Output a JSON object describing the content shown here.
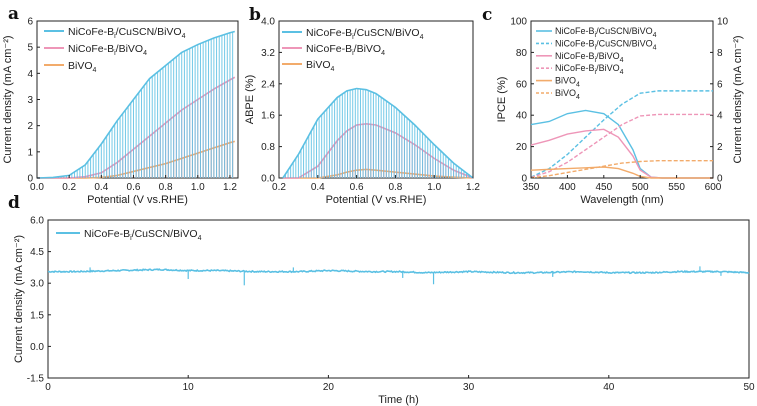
{
  "colors": {
    "cusc": "#5bc0e3",
    "nicofe": "#ee96b8",
    "bivo4": "#f2ab6b",
    "axis": "#222222"
  },
  "chart_data": [
    {
      "panel": "a",
      "type": "line",
      "style": "chopped-light transient",
      "xlabel": "Potential (V vs.RHE)",
      "ylabel": "Current density (mA cm⁻²)",
      "xlim": [
        0.0,
        1.25
      ],
      "ylim": [
        0,
        6
      ],
      "xticks": [
        "0.0",
        "0.2",
        "0.4",
        "0.6",
        "0.8",
        "1.0",
        "1.2"
      ],
      "yticks": [
        "0",
        "1",
        "2",
        "3",
        "4",
        "5",
        "6"
      ],
      "x": [
        0.0,
        0.1,
        0.2,
        0.3,
        0.4,
        0.5,
        0.6,
        0.7,
        0.8,
        0.9,
        1.0,
        1.1,
        1.2,
        1.23
      ],
      "series": [
        {
          "name": "NiCoFe-B_i/CuSCN/BiVO₄",
          "color_key": "cusc",
          "values": [
            0.0,
            0.02,
            0.1,
            0.5,
            1.3,
            2.2,
            3.0,
            3.8,
            4.3,
            4.8,
            5.1,
            5.35,
            5.55,
            5.6
          ]
        },
        {
          "name": "NiCoFe-B_i/BiVO₄",
          "color_key": "nicofe",
          "values": [
            0.0,
            0.0,
            0.0,
            0.05,
            0.2,
            0.6,
            1.1,
            1.6,
            2.1,
            2.6,
            3.0,
            3.4,
            3.75,
            3.85
          ]
        },
        {
          "name": "BiVO₄",
          "color_key": "bivo4",
          "values": [
            0.0,
            0.0,
            0.0,
            0.0,
            0.02,
            0.1,
            0.25,
            0.4,
            0.55,
            0.75,
            0.95,
            1.15,
            1.35,
            1.4
          ]
        }
      ],
      "legend": [
        {
          "main": "NiCoFe-B",
          "sub": "i",
          "rest": "/CuSCN/BiVO",
          "sub2": "4"
        },
        {
          "main": "NiCoFe-B",
          "sub": "i",
          "rest": "/BiVO",
          "sub2": "4"
        },
        {
          "main": "BiVO",
          "sub": "",
          "rest": "",
          "sub2": "4"
        }
      ]
    },
    {
      "panel": "b",
      "type": "line",
      "style": "chopped-light transient",
      "xlabel": "Potential (V vs.RHE)",
      "ylabel": "ABPE (%)",
      "xlim": [
        0.2,
        1.2
      ],
      "ylim": [
        0.0,
        4.0
      ],
      "xticks": [
        "0.2",
        "0.4",
        "0.6",
        "0.8",
        "1.0",
        "1.2"
      ],
      "yticks": [
        "0.0",
        "0.8",
        "1.6",
        "2.4",
        "3.2",
        "4.0"
      ],
      "x": [
        0.22,
        0.3,
        0.4,
        0.5,
        0.55,
        0.6,
        0.65,
        0.7,
        0.8,
        0.9,
        1.0,
        1.1,
        1.2
      ],
      "series": [
        {
          "name": "NiCoFe-B_i/CuSCN/BiVO₄",
          "color_key": "cusc",
          "values": [
            0.0,
            0.6,
            1.5,
            2.05,
            2.22,
            2.28,
            2.25,
            2.15,
            1.8,
            1.35,
            0.85,
            0.38,
            0.0
          ]
        },
        {
          "name": "NiCoFe-B_i/BiVO₄",
          "color_key": "nicofe",
          "values": [
            0.0,
            0.0,
            0.3,
            0.95,
            1.2,
            1.35,
            1.38,
            1.35,
            1.15,
            0.85,
            0.5,
            0.2,
            0.0
          ]
        },
        {
          "name": "BiVO₄",
          "color_key": "bivo4",
          "values": [
            0.0,
            0.0,
            0.0,
            0.08,
            0.15,
            0.2,
            0.22,
            0.2,
            0.15,
            0.1,
            0.05,
            0.02,
            0.0
          ]
        }
      ],
      "legend": [
        {
          "main": "NiCoFe-B",
          "sub": "i",
          "rest": "/CuSCN/BiVO",
          "sub2": "4"
        },
        {
          "main": "NiCoFe-B",
          "sub": "i",
          "rest": "/BiVO",
          "sub2": "4"
        },
        {
          "main": "BiVO",
          "sub": "",
          "rest": "",
          "sub2": "4"
        }
      ]
    },
    {
      "panel": "c",
      "type": "line",
      "xlabel": "Wavelength (nm)",
      "ylabel": "IPCE (%)",
      "ylabel_right": "Current density (mA cm⁻²)",
      "xlim": [
        350,
        600
      ],
      "ylim": [
        0,
        100
      ],
      "ylim_right": [
        0,
        10
      ],
      "xticks": [
        "350",
        "400",
        "450",
        "500",
        "550",
        "600"
      ],
      "yticks": [
        "0",
        "20",
        "40",
        "60",
        "80",
        "100"
      ],
      "yticks_right": [
        "0",
        "2",
        "4",
        "6",
        "8",
        "10"
      ],
      "series": [
        {
          "name": "NiCoFe-B_i/CuSCN/BiVO₄",
          "color_key": "cusc",
          "axis": "left",
          "dash": false,
          "x": [
            350,
            375,
            400,
            425,
            450,
            470,
            490,
            500,
            515,
            530,
            600
          ],
          "values": [
            34,
            36,
            41,
            43,
            41,
            34,
            18,
            6,
            0.5,
            0,
            0
          ]
        },
        {
          "name": "NiCoFe-B_i/CuSCN/BiVO₄",
          "color_key": "cusc",
          "axis": "right",
          "dash": true,
          "x": [
            350,
            375,
            400,
            425,
            450,
            475,
            500,
            525,
            550,
            600
          ],
          "values": [
            0.05,
            0.6,
            1.5,
            2.6,
            3.7,
            4.7,
            5.4,
            5.55,
            5.55,
            5.55
          ]
        },
        {
          "name": "NiCoFe-B_i/BiVO₄",
          "color_key": "nicofe",
          "axis": "left",
          "dash": false,
          "x": [
            350,
            375,
            400,
            425,
            450,
            470,
            490,
            500,
            515,
            530,
            600
          ],
          "values": [
            21,
            24,
            28,
            30,
            31,
            26,
            14,
            5,
            0.5,
            0,
            0
          ]
        },
        {
          "name": "NiCoFe-B_i/BiVO₄",
          "color_key": "nicofe",
          "axis": "right",
          "dash": true,
          "x": [
            350,
            375,
            400,
            425,
            450,
            475,
            500,
            525,
            550,
            600
          ],
          "values": [
            0.03,
            0.4,
            1.0,
            1.8,
            2.6,
            3.4,
            3.95,
            4.05,
            4.05,
            4.05
          ]
        },
        {
          "name": "BiVO₄",
          "color_key": "bivo4",
          "axis": "left",
          "dash": false,
          "x": [
            350,
            375,
            400,
            425,
            450,
            470,
            490,
            500,
            515,
            530,
            600
          ],
          "values": [
            5,
            5.5,
            6,
            6.5,
            7,
            6,
            3,
            1,
            0,
            0,
            0
          ]
        },
        {
          "name": "BiVO₄",
          "color_key": "bivo4",
          "axis": "right",
          "dash": true,
          "x": [
            350,
            375,
            400,
            425,
            450,
            475,
            500,
            525,
            550,
            600
          ],
          "values": [
            0.01,
            0.15,
            0.35,
            0.55,
            0.75,
            0.95,
            1.05,
            1.1,
            1.1,
            1.1
          ]
        }
      ],
      "legend": [
        {
          "main": "NiCoFe-B",
          "sub": "i",
          "rest": "/CuSCN/BiVO",
          "sub2": "4",
          "dash": false,
          "color_key": "cusc"
        },
        {
          "main": "NiCoFe-B",
          "sub": "i",
          "rest": "/CuSCN/BiVO",
          "sub2": "4",
          "dash": true,
          "color_key": "cusc"
        },
        {
          "main": "NiCoFe-B",
          "sub": "i",
          "rest": "/BiVO",
          "sub2": "4",
          "dash": false,
          "color_key": "nicofe"
        },
        {
          "main": "NiCoFe-B",
          "sub": "i",
          "rest": "/BiVO",
          "sub2": "4",
          "dash": true,
          "color_key": "nicofe"
        },
        {
          "main": "BiVO",
          "sub": "",
          "rest": "",
          "sub2": "4",
          "dash": false,
          "color_key": "bivo4"
        },
        {
          "main": "BiVO",
          "sub": "",
          "rest": "",
          "sub2": "4",
          "dash": true,
          "color_key": "bivo4"
        }
      ]
    },
    {
      "panel": "d",
      "type": "line",
      "xlabel": "Time (h)",
      "ylabel": "Current density (mA cm⁻²)",
      "xlim": [
        0,
        50
      ],
      "ylim": [
        -1.5,
        6.0
      ],
      "xticks": [
        "0",
        "10",
        "20",
        "30",
        "40",
        "50"
      ],
      "yticks": [
        "-1.5",
        "0.0",
        "1.5",
        "3.0",
        "4.5",
        "6.0"
      ],
      "series": [
        {
          "name": "NiCoFe-B_i/CuSCN/BiVO₄",
          "color_key": "cusc",
          "x": [
            0,
            2,
            5,
            8,
            10,
            12,
            15,
            18,
            20,
            23,
            25,
            27,
            30,
            33,
            35,
            38,
            40,
            43,
            45,
            48,
            50
          ],
          "values": [
            3.55,
            3.55,
            3.6,
            3.65,
            3.6,
            3.6,
            3.55,
            3.55,
            3.6,
            3.55,
            3.55,
            3.5,
            3.55,
            3.5,
            3.5,
            3.55,
            3.5,
            3.5,
            3.55,
            3.55,
            3.5
          ]
        }
      ],
      "spikes": [
        {
          "x": 10.0,
          "y": 3.2
        },
        {
          "x": 14.0,
          "y": 2.9
        },
        {
          "x": 25.3,
          "y": 3.25
        },
        {
          "x": 27.5,
          "y": 2.95
        },
        {
          "x": 36.0,
          "y": 3.3
        },
        {
          "x": 48.0,
          "y": 3.35
        },
        {
          "x": 3.0,
          "y": 3.75
        },
        {
          "x": 17.5,
          "y": 3.75
        },
        {
          "x": 46.5,
          "y": 3.8
        }
      ],
      "legend": [
        {
          "main": "NiCoFe-B",
          "sub": "i",
          "rest": "/CuSCN/BiVO",
          "sub2": "4"
        }
      ]
    }
  ]
}
